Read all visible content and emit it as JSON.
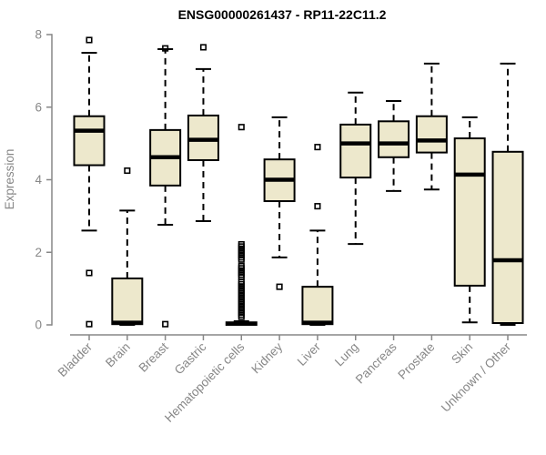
{
  "chart_data": {
    "type": "boxplot",
    "title": "ENSG00000261437 - RP11-22C11.2",
    "ylabel": "Expression",
    "ylim": [
      0,
      8
    ],
    "yticks": [
      0,
      2,
      4,
      6,
      8
    ],
    "grid": false,
    "categories": [
      "Bladder",
      "Brain",
      "Breast",
      "Gastric",
      "Hematopoietic cells",
      "Kidney",
      "Liver",
      "Lung",
      "Pancreas",
      "Prostate",
      "Skin",
      "Unknown / Other"
    ],
    "series": [
      {
        "name": "Bladder",
        "low": 2.6,
        "q1": 4.4,
        "median": 5.35,
        "q3": 5.75,
        "high": 7.5,
        "outliers": [
          7.85,
          1.43,
          0.02
        ]
      },
      {
        "name": "Brain",
        "low": 0.0,
        "q1": 0.02,
        "median": 0.06,
        "q3": 1.28,
        "high": 3.15,
        "outliers": [
          4.25
        ]
      },
      {
        "name": "Breast",
        "low": 2.76,
        "q1": 3.84,
        "median": 4.62,
        "q3": 5.37,
        "high": 7.6,
        "outliers": [
          7.62,
          0.02
        ]
      },
      {
        "name": "Gastric",
        "low": 2.86,
        "q1": 4.54,
        "median": 5.1,
        "q3": 5.77,
        "high": 7.05,
        "outliers": [
          7.65
        ]
      },
      {
        "name": "Hematopoietic cells",
        "low": 0.0,
        "q1": 0.0,
        "median": 0.03,
        "q3": 0.07,
        "high": 0.1,
        "outliers": [
          5.45,
          2.22,
          2.16,
          2.1,
          2.04,
          1.98,
          1.92,
          1.86,
          1.8,
          1.62,
          1.56,
          1.5,
          1.44,
          1.38,
          1.32,
          1.18,
          1.12,
          1.06,
          1.0,
          0.94,
          0.88,
          0.82,
          0.76,
          0.7,
          0.64,
          0.58,
          0.52,
          0.46,
          0.4,
          0.34,
          0.28,
          0.22
        ]
      },
      {
        "name": "Kidney",
        "low": 1.86,
        "q1": 3.41,
        "median": 4.0,
        "q3": 4.56,
        "high": 5.72,
        "outliers": [
          1.05
        ]
      },
      {
        "name": "Liver",
        "low": 0.0,
        "q1": 0.02,
        "median": 0.06,
        "q3": 1.05,
        "high": 2.6,
        "outliers": [
          4.9,
          3.27
        ]
      },
      {
        "name": "Lung",
        "low": 2.23,
        "q1": 4.06,
        "median": 5.0,
        "q3": 5.52,
        "high": 6.4,
        "outliers": []
      },
      {
        "name": "Pancreas",
        "low": 3.69,
        "q1": 4.62,
        "median": 5.0,
        "q3": 5.61,
        "high": 6.17,
        "outliers": []
      },
      {
        "name": "Prostate",
        "low": 3.73,
        "q1": 4.75,
        "median": 5.08,
        "q3": 5.75,
        "high": 7.2,
        "outliers": []
      },
      {
        "name": "Skin",
        "low": 0.07,
        "q1": 1.08,
        "median": 4.14,
        "q3": 5.14,
        "high": 5.72,
        "outliers": []
      },
      {
        "name": "Unknown / Other",
        "low": 0.0,
        "q1": 0.05,
        "median": 1.78,
        "q3": 4.77,
        "high": 7.2,
        "outliers": []
      }
    ],
    "colors": {
      "box_fill": "#EDE8CC",
      "box_stroke": "#000000",
      "median": "#000000",
      "whisker": "#000000",
      "axis": "#878787",
      "tick_text": "#878787",
      "title_text": "#000000",
      "background": "#FFFFFF"
    }
  }
}
